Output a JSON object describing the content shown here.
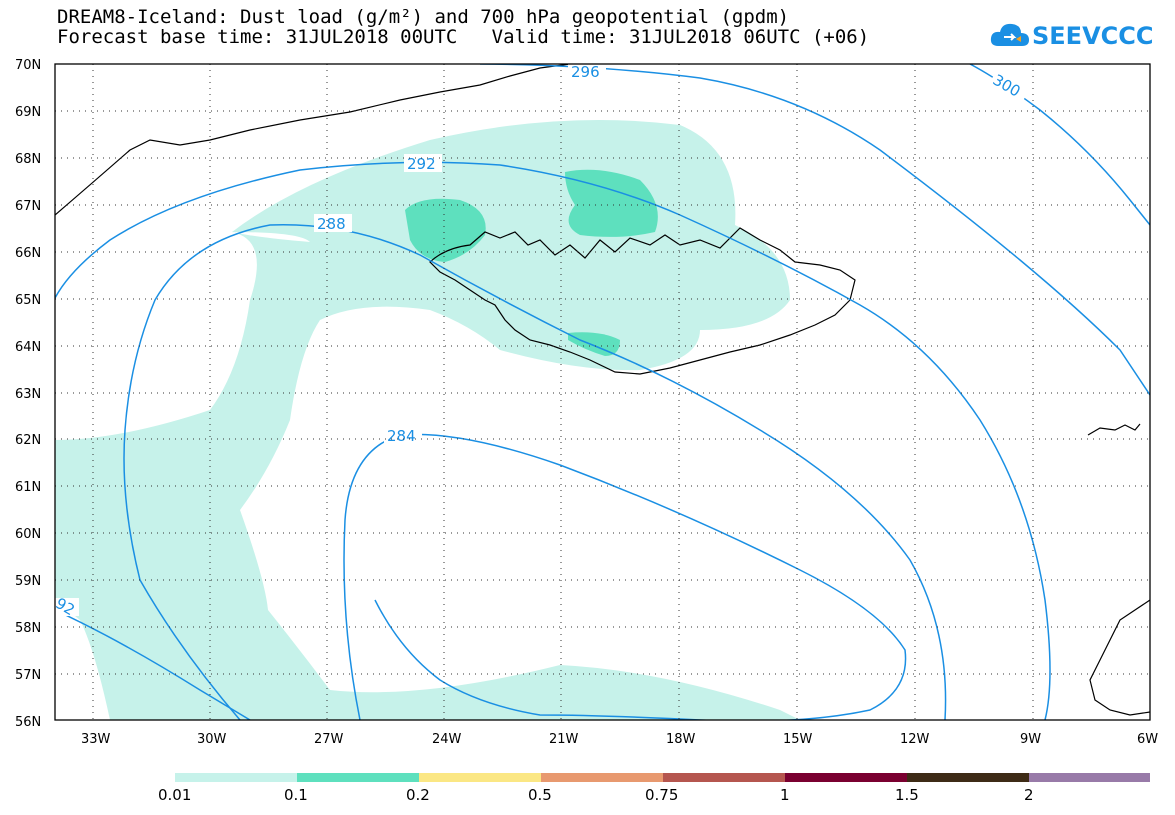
{
  "title": {
    "line1": "DREAM8-Iceland: Dust load (g/m²) and 700 hPa geopotential (gpdm)",
    "line2": "Forecast base time: 31JUL2018 00UTC   Valid time: 31JUL2018 06UTC (+06)"
  },
  "logo": {
    "text": "SEEVCCC",
    "icon": "cloud-icon",
    "color": "#1a8fe3"
  },
  "map": {
    "lat_labels": [
      "70N",
      "69N",
      "68N",
      "67N",
      "66N",
      "65N",
      "64N",
      "63N",
      "62N",
      "61N",
      "60N",
      "59N",
      "58N",
      "57N",
      "56N"
    ],
    "lon_labels": [
      "33W",
      "30W",
      "27W",
      "24W",
      "21W",
      "18W",
      "15W",
      "12W",
      "9W",
      "6W"
    ],
    "contour_color": "#1a8fe3",
    "coast_color": "#000000",
    "contour_labels": [
      "296",
      "300",
      "292",
      "288",
      "284",
      "92"
    ]
  },
  "colorbar": {
    "levels": [
      "0.01",
      "0.1",
      "0.2",
      "0.5",
      "0.75",
      "1",
      "1.5",
      "2"
    ],
    "colors": [
      "#c6f2ea",
      "#5ee0be",
      "#fbe784",
      "#e8996f",
      "#b5564f",
      "#7a0030",
      "#3e2b16",
      "#987aa8"
    ]
  }
}
